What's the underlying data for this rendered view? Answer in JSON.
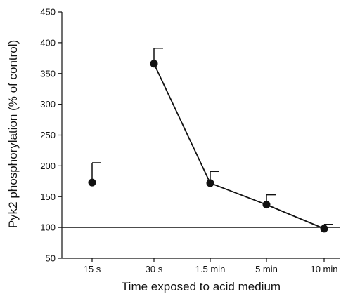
{
  "chart_data": {
    "type": "line",
    "title": "",
    "xlabel": "Time exposed to acid medium",
    "ylabel": "Pyk2 phosphorylation (% of control)",
    "categories": [
      "15 s",
      "30 s",
      "1.5 min",
      "5 min",
      "10 min"
    ],
    "series": [
      {
        "values": [
          173,
          366,
          172,
          137,
          98
        ],
        "error_upper": [
          205,
          391,
          191,
          153,
          105
        ]
      }
    ],
    "connected_points": [
      1,
      2,
      3,
      4
    ],
    "ylim": [
      50,
      450
    ],
    "yticks": [
      50,
      100,
      150,
      200,
      250,
      300,
      350,
      400,
      450
    ],
    "reference_line": 100,
    "grid": false,
    "colors": {
      "line": "#111111",
      "marker": "#111111",
      "axis": "#111111"
    }
  }
}
